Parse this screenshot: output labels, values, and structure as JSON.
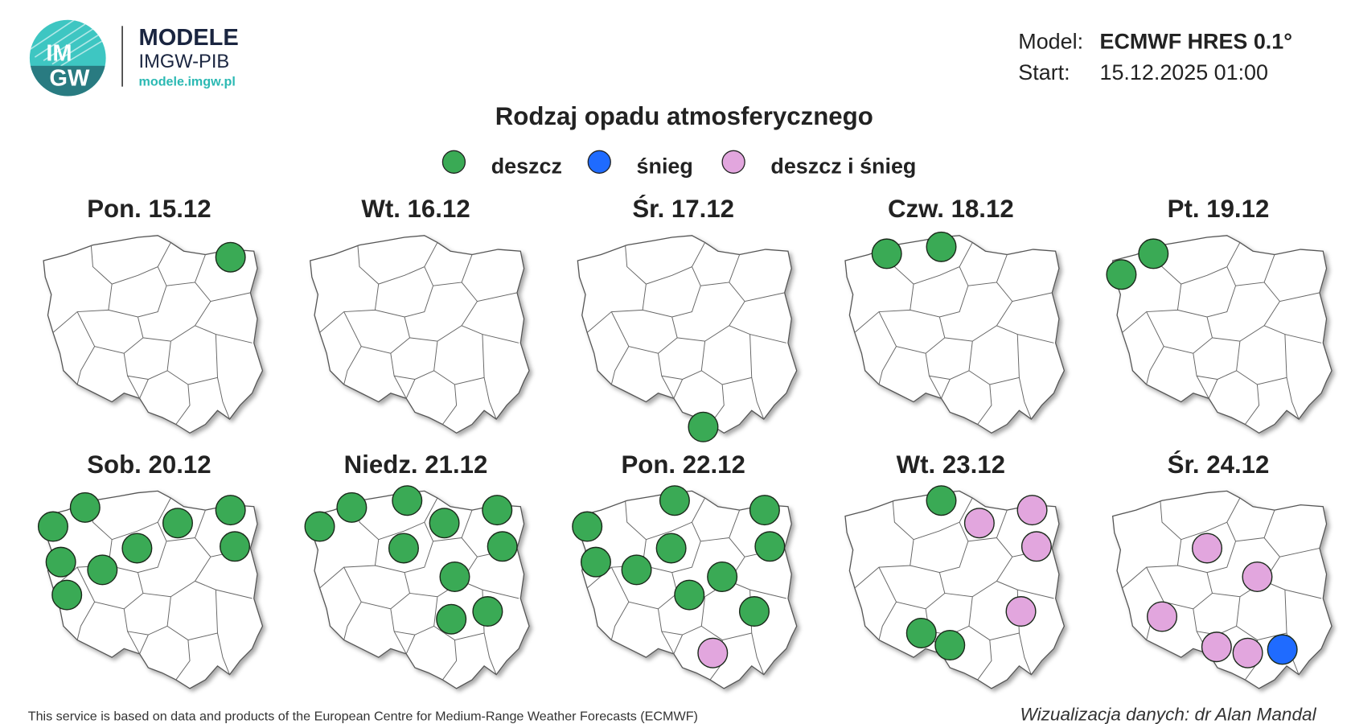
{
  "header": {
    "logo": [
      "IM",
      "GW"
    ],
    "brand": "MODELE",
    "org": "IMGW-PIB",
    "url": "modele.imgw.pl",
    "model_label": "Model:",
    "model": "ECMWF HRES 0.1°",
    "start_label": "Start:",
    "start": "15.12.2025 01:00"
  },
  "title": "Rodzaj opadu atmosferycznego",
  "legend": [
    {
      "label": "deszcz",
      "color": "#3aaa55"
    },
    {
      "label": "śnieg",
      "color": "#1f6bff"
    },
    {
      "label": "deszcz i śnieg",
      "color": "#e2a6de"
    }
  ],
  "panels": [
    {
      "title": "Pon. 15.12",
      "markers": [
        "deszcz"
      ]
    },
    {
      "title": "Wt. 16.12",
      "markers": []
    },
    {
      "title": "Śr. 17.12",
      "markers": [
        "deszcz"
      ]
    },
    {
      "title": "Czw. 18.12",
      "markers": [
        "deszcz",
        "deszcz"
      ]
    },
    {
      "title": "Pt. 19.12",
      "markers": [
        "deszcz",
        "deszcz"
      ]
    },
    {
      "title": "Sob. 20.12",
      "markers": [
        "deszcz",
        "deszcz",
        "deszcz",
        "deszcz",
        "deszcz",
        "deszcz",
        "deszcz",
        "deszcz",
        "deszcz"
      ]
    },
    {
      "title": "Niedz. 21.12",
      "markers": [
        "deszcz",
        "deszcz",
        "deszcz",
        "deszcz",
        "deszcz",
        "deszcz",
        "deszcz",
        "deszcz",
        "deszcz",
        "deszcz"
      ]
    },
    {
      "title": "Pon. 22.12",
      "markers": [
        "deszcz",
        "deszcz",
        "deszcz",
        "deszcz",
        "deszcz",
        "deszcz",
        "deszcz",
        "deszcz",
        "deszcz",
        "deszcz",
        "deszcz i śnieg"
      ]
    },
    {
      "title": "Wt. 23.12",
      "markers": [
        "deszcz",
        "deszcz i śnieg",
        "deszcz i śnieg",
        "deszcz i śnieg",
        "deszcz i śnieg",
        "deszcz",
        "deszcz"
      ]
    },
    {
      "title": "Śr. 24.12",
      "markers": [
        "deszcz i śnieg",
        "deszcz i śnieg",
        "deszcz i śnieg",
        "deszcz i śnieg",
        "deszcz i śnieg",
        "śnieg"
      ]
    }
  ],
  "footer": {
    "source": "This service is based on data and products of the European Centre for Medium-Range Weather Forecasts (ECMWF)",
    "credit": "Wizualizacja danych: dr Alan Mandal"
  }
}
